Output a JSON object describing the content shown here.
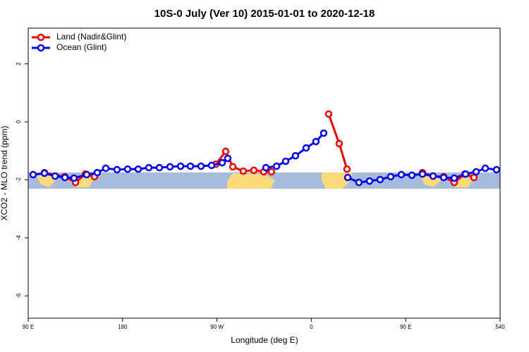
{
  "chart_data": {
    "type": "line",
    "title": "10S-0 July (Ver 10)   2015-01-01 to 2020-12-18",
    "x_label": "Longitude (deg E)",
    "y_label": "XCO2 - MLO trend (ppm)",
    "xlim": [
      90,
      540
    ],
    "ylim": [
      -6.77,
      3.23
    ],
    "xticks": [
      {
        "value": 90,
        "label": "90 E"
      },
      180,
      {
        "value": 270,
        "label": "90 W"
      },
      {
        "value": 360,
        "label": "0"
      },
      {
        "value": 450,
        "label": "90 E"
      },
      540
    ],
    "yticks": [
      -6,
      -4,
      -2,
      0,
      2
    ],
    "legend": "top-left",
    "series": [
      {
        "name": "Land (Nadir&Glint)",
        "color": "#ee0000",
        "x": [
          105.5,
          125.0,
          135.1,
          144.5,
          153.2,
          null,
          268.9,
          278.3,
          285.1,
          295.1,
          305.2,
          314.6,
          322.0,
          null,
          376.5,
          386.6,
          394.0,
          null,
          466.0,
          476.1,
          486.2,
          496.3,
          506.3,
          515.1
        ],
        "values": [
          -1.75,
          -1.89,
          -2.09,
          -1.8,
          -1.89,
          null,
          -1.46,
          -1.02,
          -1.55,
          -1.7,
          -1.67,
          -1.72,
          -1.72,
          null,
          0.27,
          -0.75,
          -1.63,
          null,
          -1.75,
          -1.87,
          -1.89,
          -2.09,
          -1.8,
          -1.92
        ]
      },
      {
        "name": "Ocean (Glint)",
        "color": "#0000ee",
        "x": [
          94.7,
          105.5,
          115.6,
          125.0,
          133.7,
          145.8,
          155.9,
          164.0,
          174.7,
          184.8,
          194.9,
          205.0,
          215.1,
          225.2,
          235.3,
          244.7,
          254.8,
          264.9,
          275.0,
          280.3,
          null,
          316.7,
          326.8,
          335.5,
          344.9,
          355.0,
          364.4,
          371.8,
          null,
          394.7,
          405.4,
          415.5,
          425.6,
          435.7,
          445.8,
          455.9,
          466.0,
          476.1,
          486.2,
          496.3,
          507.1,
          517.2,
          525.9,
          536.6
        ],
        "values": [
          -1.82,
          -1.77,
          -1.87,
          -1.92,
          -1.94,
          -1.82,
          -1.75,
          -1.6,
          -1.65,
          -1.63,
          -1.63,
          -1.58,
          -1.58,
          -1.55,
          -1.53,
          -1.53,
          -1.53,
          -1.5,
          -1.41,
          -1.26,
          null,
          -1.58,
          -1.53,
          -1.36,
          -1.17,
          -0.9,
          -0.68,
          -0.39,
          null,
          -1.92,
          -2.09,
          -2.04,
          -1.99,
          -1.89,
          -1.82,
          -1.84,
          -1.8,
          -1.87,
          -1.92,
          -1.94,
          -1.8,
          -1.72,
          -1.6,
          -1.65
        ]
      }
    ]
  }
}
